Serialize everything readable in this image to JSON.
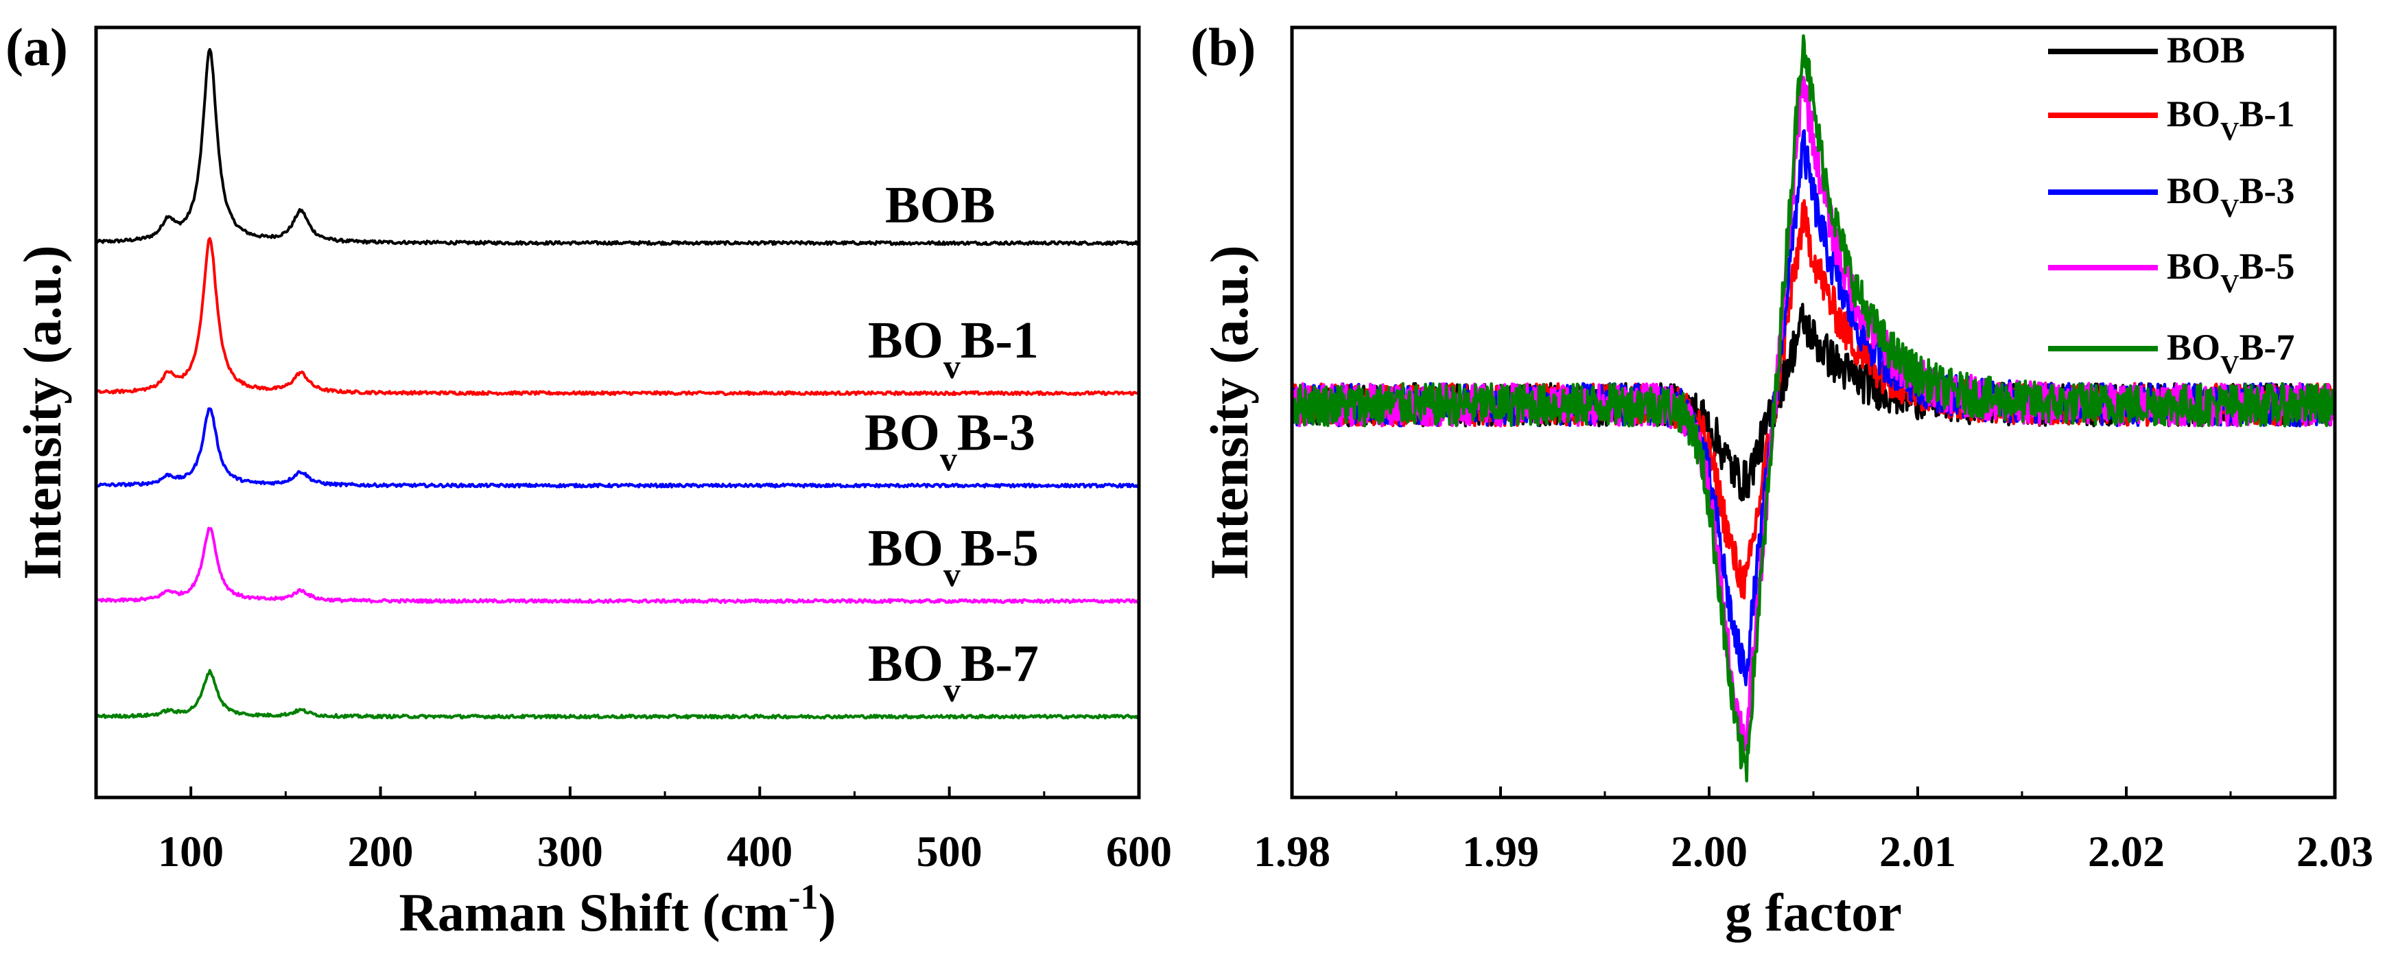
{
  "chart_data": [
    {
      "panel_label": "(a)",
      "type": "line",
      "title": "",
      "xlabel_main": "Raman Shift (cm",
      "xlabel_sup": "-1",
      "xlabel_tail": ")",
      "ylabel": "Intensity (a.u.)",
      "xlim": [
        50,
        600
      ],
      "ylim": [
        0,
        10
      ],
      "xticks": [
        100,
        200,
        300,
        400,
        500,
        600
      ],
      "xticklabels": [
        "100",
        "200",
        "300",
        "400",
        "500",
        "600"
      ],
      "yticks": [],
      "grid": false,
      "peaks_cm": [
        88,
        110,
        158
      ],
      "series": [
        {
          "name": "BOB",
          "label_main": "BO",
          "label_sub": "",
          "label_tail": "B",
          "color": "#000000",
          "baseline": 7.2,
          "amplitudes": [
            0.25,
            2.5,
            0.4
          ]
        },
        {
          "name": "BOvB-1",
          "label_main": "BO",
          "label_sub": "v",
          "label_tail": "B-1",
          "color": "#ff0000",
          "baseline": 5.25,
          "amplitudes": [
            0.2,
            2.0,
            0.25
          ]
        },
        {
          "name": "BOvB-3",
          "label_main": "BO",
          "label_sub": "v",
          "label_tail": "B-3",
          "color": "#0000ff",
          "baseline": 4.05,
          "amplitudes": [
            0.1,
            1.0,
            0.17
          ]
        },
        {
          "name": "BOvB-5",
          "label_main": "BO",
          "label_sub": "v",
          "label_tail": "B-5",
          "color": "#ff00ff",
          "baseline": 2.55,
          "amplitudes": [
            0.1,
            0.95,
            0.13
          ]
        },
        {
          "name": "BOvB-7",
          "label_main": "BO",
          "label_sub": "v",
          "label_tail": "B-7",
          "color": "#008000",
          "baseline": 1.05,
          "amplitudes": [
            0.06,
            0.58,
            0.08
          ]
        }
      ]
    },
    {
      "panel_label": "(b)",
      "type": "line",
      "title": "",
      "xlabel": "g factor",
      "ylabel": "Intensity (a.u.)",
      "xlim": [
        1.98,
        2.03
      ],
      "ylim": [
        -1.0,
        1.0
      ],
      "xticks": [
        1.98,
        1.99,
        2.0,
        2.01,
        2.02,
        2.03
      ],
      "xticklabels": [
        "1.98",
        "1.99",
        "2.00",
        "2.01",
        "2.02",
        "2.03"
      ],
      "yticks": [],
      "grid": false,
      "legend_position": "top-right",
      "trough_g": 2.0018,
      "peak_g": 2.0045,
      "series": [
        {
          "name": "BOB",
          "label_main": "BOB",
          "label_sub": "",
          "label_tail": "",
          "color": "#000000",
          "trough": -0.2,
          "peak": 0.22
        },
        {
          "name": "BOvB-1",
          "label_main": "BO",
          "label_sub": "V",
          "label_tail": "B-1",
          "color": "#ff0000",
          "trough": -0.46,
          "peak": 0.49
        },
        {
          "name": "BOvB-3",
          "label_main": "BO",
          "label_sub": "V",
          "label_tail": "B-3",
          "color": "#0000ff",
          "trough": -0.68,
          "peak": 0.68
        },
        {
          "name": "BOvB-5",
          "label_main": "BO",
          "label_sub": "V",
          "label_tail": "B-5",
          "color": "#ff00ff",
          "trough": -0.86,
          "peak": 0.86
        },
        {
          "name": "BOvB-7",
          "label_main": "BO",
          "label_sub": "V",
          "label_tail": "B-7",
          "color": "#008000",
          "trough": -0.93,
          "peak": 0.97
        }
      ]
    }
  ]
}
